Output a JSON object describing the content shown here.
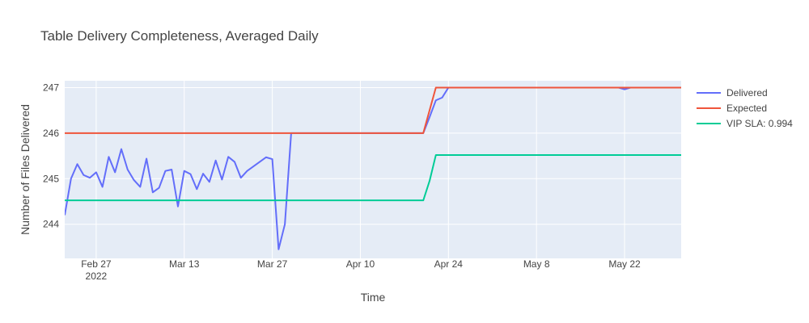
{
  "chart_data": {
    "type": "line",
    "title": "Table Delivery Completeness, Averaged Daily",
    "xlabel": "Time",
    "ylabel": "Number of Files Delivered",
    "x_range": [
      "2022-02-22",
      "2022-05-31"
    ],
    "y_range": [
      243.25,
      247.15
    ],
    "x_ticks": [
      {
        "date": "2022-02-27",
        "label": "Feb 27",
        "sublabel": "2022"
      },
      {
        "date": "2022-03-13",
        "label": "Mar 13",
        "sublabel": ""
      },
      {
        "date": "2022-03-27",
        "label": "Mar 27",
        "sublabel": ""
      },
      {
        "date": "2022-04-10",
        "label": "Apr 10",
        "sublabel": ""
      },
      {
        "date": "2022-04-24",
        "label": "Apr 24",
        "sublabel": ""
      },
      {
        "date": "2022-05-08",
        "label": "May 8",
        "sublabel": ""
      },
      {
        "date": "2022-05-22",
        "label": "May 22",
        "sublabel": ""
      }
    ],
    "y_ticks": [
      244,
      245,
      246,
      247
    ],
    "grid": true,
    "legend_position": "top-right",
    "series": [
      {
        "name": "Delivered",
        "color": "#636efa",
        "points": [
          [
            "2022-02-22",
            244.2
          ],
          [
            "2022-02-23",
            245.0
          ],
          [
            "2022-02-24",
            245.32
          ],
          [
            "2022-02-25",
            245.08
          ],
          [
            "2022-02-26",
            245.02
          ],
          [
            "2022-02-27",
            245.14
          ],
          [
            "2022-02-28",
            244.82
          ],
          [
            "2022-03-01",
            245.48
          ],
          [
            "2022-03-02",
            245.14
          ],
          [
            "2022-03-03",
            245.65
          ],
          [
            "2022-03-04",
            245.2
          ],
          [
            "2022-03-05",
            244.97
          ],
          [
            "2022-03-06",
            244.82
          ],
          [
            "2022-03-07",
            245.44
          ],
          [
            "2022-03-08",
            244.7
          ],
          [
            "2022-03-09",
            244.8
          ],
          [
            "2022-03-10",
            245.17
          ],
          [
            "2022-03-11",
            245.2
          ],
          [
            "2022-03-12",
            244.39
          ],
          [
            "2022-03-13",
            245.17
          ],
          [
            "2022-03-14",
            245.1
          ],
          [
            "2022-03-15",
            244.77
          ],
          [
            "2022-03-16",
            245.11
          ],
          [
            "2022-03-17",
            244.93
          ],
          [
            "2022-03-18",
            245.4
          ],
          [
            "2022-03-19",
            244.98
          ],
          [
            "2022-03-20",
            245.48
          ],
          [
            "2022-03-21",
            245.37
          ],
          [
            "2022-03-22",
            245.02
          ],
          [
            "2022-03-23",
            245.17
          ],
          [
            "2022-03-24",
            245.27
          ],
          [
            "2022-03-25",
            245.37
          ],
          [
            "2022-03-26",
            245.47
          ],
          [
            "2022-03-27",
            245.43
          ],
          [
            "2022-03-28",
            243.45
          ],
          [
            "2022-03-29",
            244.0
          ],
          [
            "2022-03-30",
            246.0
          ],
          [
            "2022-04-20",
            246.0
          ],
          [
            "2022-04-21",
            246.35
          ],
          [
            "2022-04-22",
            246.72
          ],
          [
            "2022-04-23",
            246.78
          ],
          [
            "2022-04-24",
            247.0
          ],
          [
            "2022-05-21",
            247.0
          ],
          [
            "2022-05-22",
            246.96
          ],
          [
            "2022-05-23",
            247.0
          ],
          [
            "2022-05-31",
            247.0
          ]
        ]
      },
      {
        "name": "Expected",
        "color": "#ef553b",
        "points": [
          [
            "2022-02-22",
            246.0
          ],
          [
            "2022-04-20",
            246.0
          ],
          [
            "2022-04-22",
            247.0
          ],
          [
            "2022-05-31",
            247.0
          ]
        ]
      },
      {
        "name": "VIP SLA: 0.994",
        "color": "#00cc96",
        "points": [
          [
            "2022-02-22",
            244.524
          ],
          [
            "2022-04-20",
            244.524
          ],
          [
            "2022-04-21",
            244.95
          ],
          [
            "2022-04-22",
            245.518
          ],
          [
            "2022-05-31",
            245.518
          ]
        ]
      }
    ]
  }
}
